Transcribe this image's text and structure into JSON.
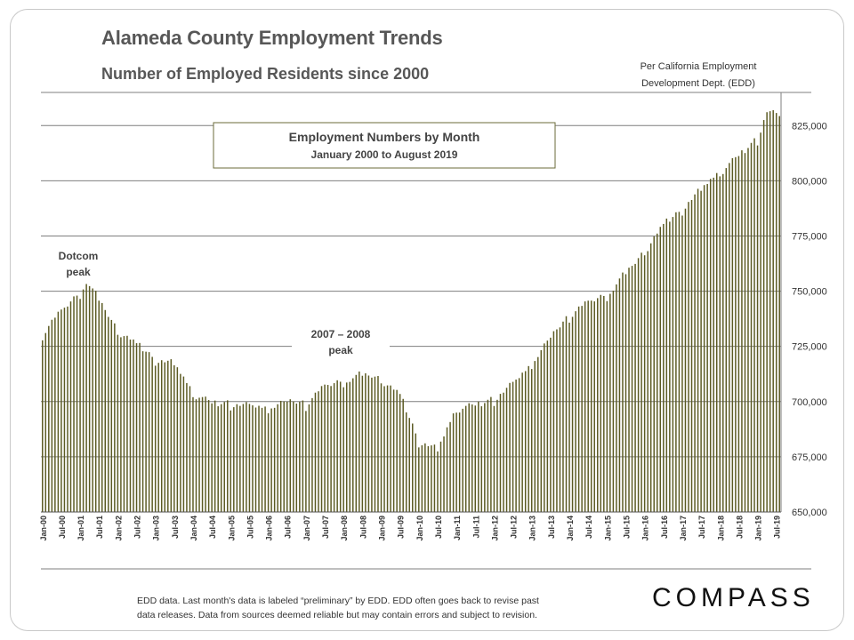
{
  "header": {
    "title": "Alameda County Employment Trends",
    "subtitle": "Number of Employed Residents since 2000",
    "source_line1": "Per California Employment",
    "source_line2": "Development Dept. (EDD)"
  },
  "footer": {
    "note_line1": "EDD data. Last month's data is labeled “preliminary” by EDD. EDD often goes back to revise past",
    "note_line2": "data releases. Data from sources deemed reliable but may contain errors and subject to revision.",
    "logo": "COMPASS"
  },
  "chart_data": {
    "type": "bar",
    "title": "Employment Numbers by Month",
    "subtitle": "January 2000 to August 2019",
    "ylim": [
      650000,
      840000
    ],
    "y_ticks": [
      650000,
      675000,
      700000,
      725000,
      750000,
      775000,
      800000,
      825000
    ],
    "y_tick_labels": [
      "650,000",
      "675,000",
      "700,000",
      "725,000",
      "750,000",
      "775,000",
      "800,000",
      "825,000"
    ],
    "x_tick_labels": [
      "Jan-00",
      "Jul-00",
      "Jan-01",
      "Jul-01",
      "Jan-02",
      "Jul-02",
      "Jan-03",
      "Jul-03",
      "Jan-04",
      "Jul-04",
      "Jan-05",
      "Jul-05",
      "Jan-06",
      "Jul-06",
      "Jan-07",
      "Jul-07",
      "Jan-08",
      "Jul-08",
      "Jan-09",
      "Jul-09",
      "Jan-10",
      "Jul-10",
      "Jan-11",
      "Jul-11",
      "Jan-12",
      "Jul-12",
      "Jan-13",
      "Jul-13",
      "Jan-14",
      "Jul-14",
      "Jan-15",
      "Jul-15",
      "Jan-16",
      "Jul-16",
      "Jan-17",
      "Jul-17",
      "Jan-18",
      "Jul-18",
      "Jan-19",
      "Jul-19"
    ],
    "month_count": 236,
    "anchors": [
      {
        "month": 0,
        "value": 731000
      },
      {
        "month": 6,
        "value": 740000
      },
      {
        "month": 12,
        "value": 749000
      },
      {
        "month": 14,
        "value": 754000
      },
      {
        "month": 18,
        "value": 745000
      },
      {
        "month": 24,
        "value": 732000
      },
      {
        "month": 30,
        "value": 725000
      },
      {
        "month": 36,
        "value": 719000
      },
      {
        "month": 42,
        "value": 716000
      },
      {
        "month": 48,
        "value": 704000
      },
      {
        "month": 54,
        "value": 698000
      },
      {
        "month": 60,
        "value": 699000
      },
      {
        "month": 66,
        "value": 697000
      },
      {
        "month": 72,
        "value": 697000
      },
      {
        "month": 78,
        "value": 699000
      },
      {
        "month": 84,
        "value": 699000
      },
      {
        "month": 90,
        "value": 706000
      },
      {
        "month": 96,
        "value": 709000
      },
      {
        "month": 102,
        "value": 711000
      },
      {
        "month": 105,
        "value": 711000
      },
      {
        "month": 108,
        "value": 710000
      },
      {
        "month": 114,
        "value": 702000
      },
      {
        "month": 120,
        "value": 682000
      },
      {
        "month": 126,
        "value": 677000
      },
      {
        "month": 132,
        "value": 697000
      },
      {
        "month": 138,
        "value": 697000
      },
      {
        "month": 144,
        "value": 701000
      },
      {
        "month": 150,
        "value": 707000
      },
      {
        "month": 156,
        "value": 717000
      },
      {
        "month": 162,
        "value": 728000
      },
      {
        "month": 168,
        "value": 739000
      },
      {
        "month": 174,
        "value": 744000
      },
      {
        "month": 180,
        "value": 748000
      },
      {
        "month": 186,
        "value": 757000
      },
      {
        "month": 192,
        "value": 768000
      },
      {
        "month": 198,
        "value": 779000
      },
      {
        "month": 204,
        "value": 787000
      },
      {
        "month": 210,
        "value": 795000
      },
      {
        "month": 216,
        "value": 804000
      },
      {
        "month": 222,
        "value": 810000
      },
      {
        "month": 228,
        "value": 819000
      },
      {
        "month": 231,
        "value": 831000
      },
      {
        "month": 235,
        "value": 828000
      }
    ],
    "annotations": [
      {
        "name": "dotcom-peak-label",
        "line1": "Dotcom",
        "line2": "peak"
      },
      {
        "name": "peak-2007-label",
        "line1": "2007 – 2008",
        "line2": "peak"
      }
    ],
    "colors": {
      "bar": "#5b5a22",
      "title_box_border": "#6b6b3a",
      "grid": "#7f7f7f",
      "text": "#333333"
    }
  }
}
